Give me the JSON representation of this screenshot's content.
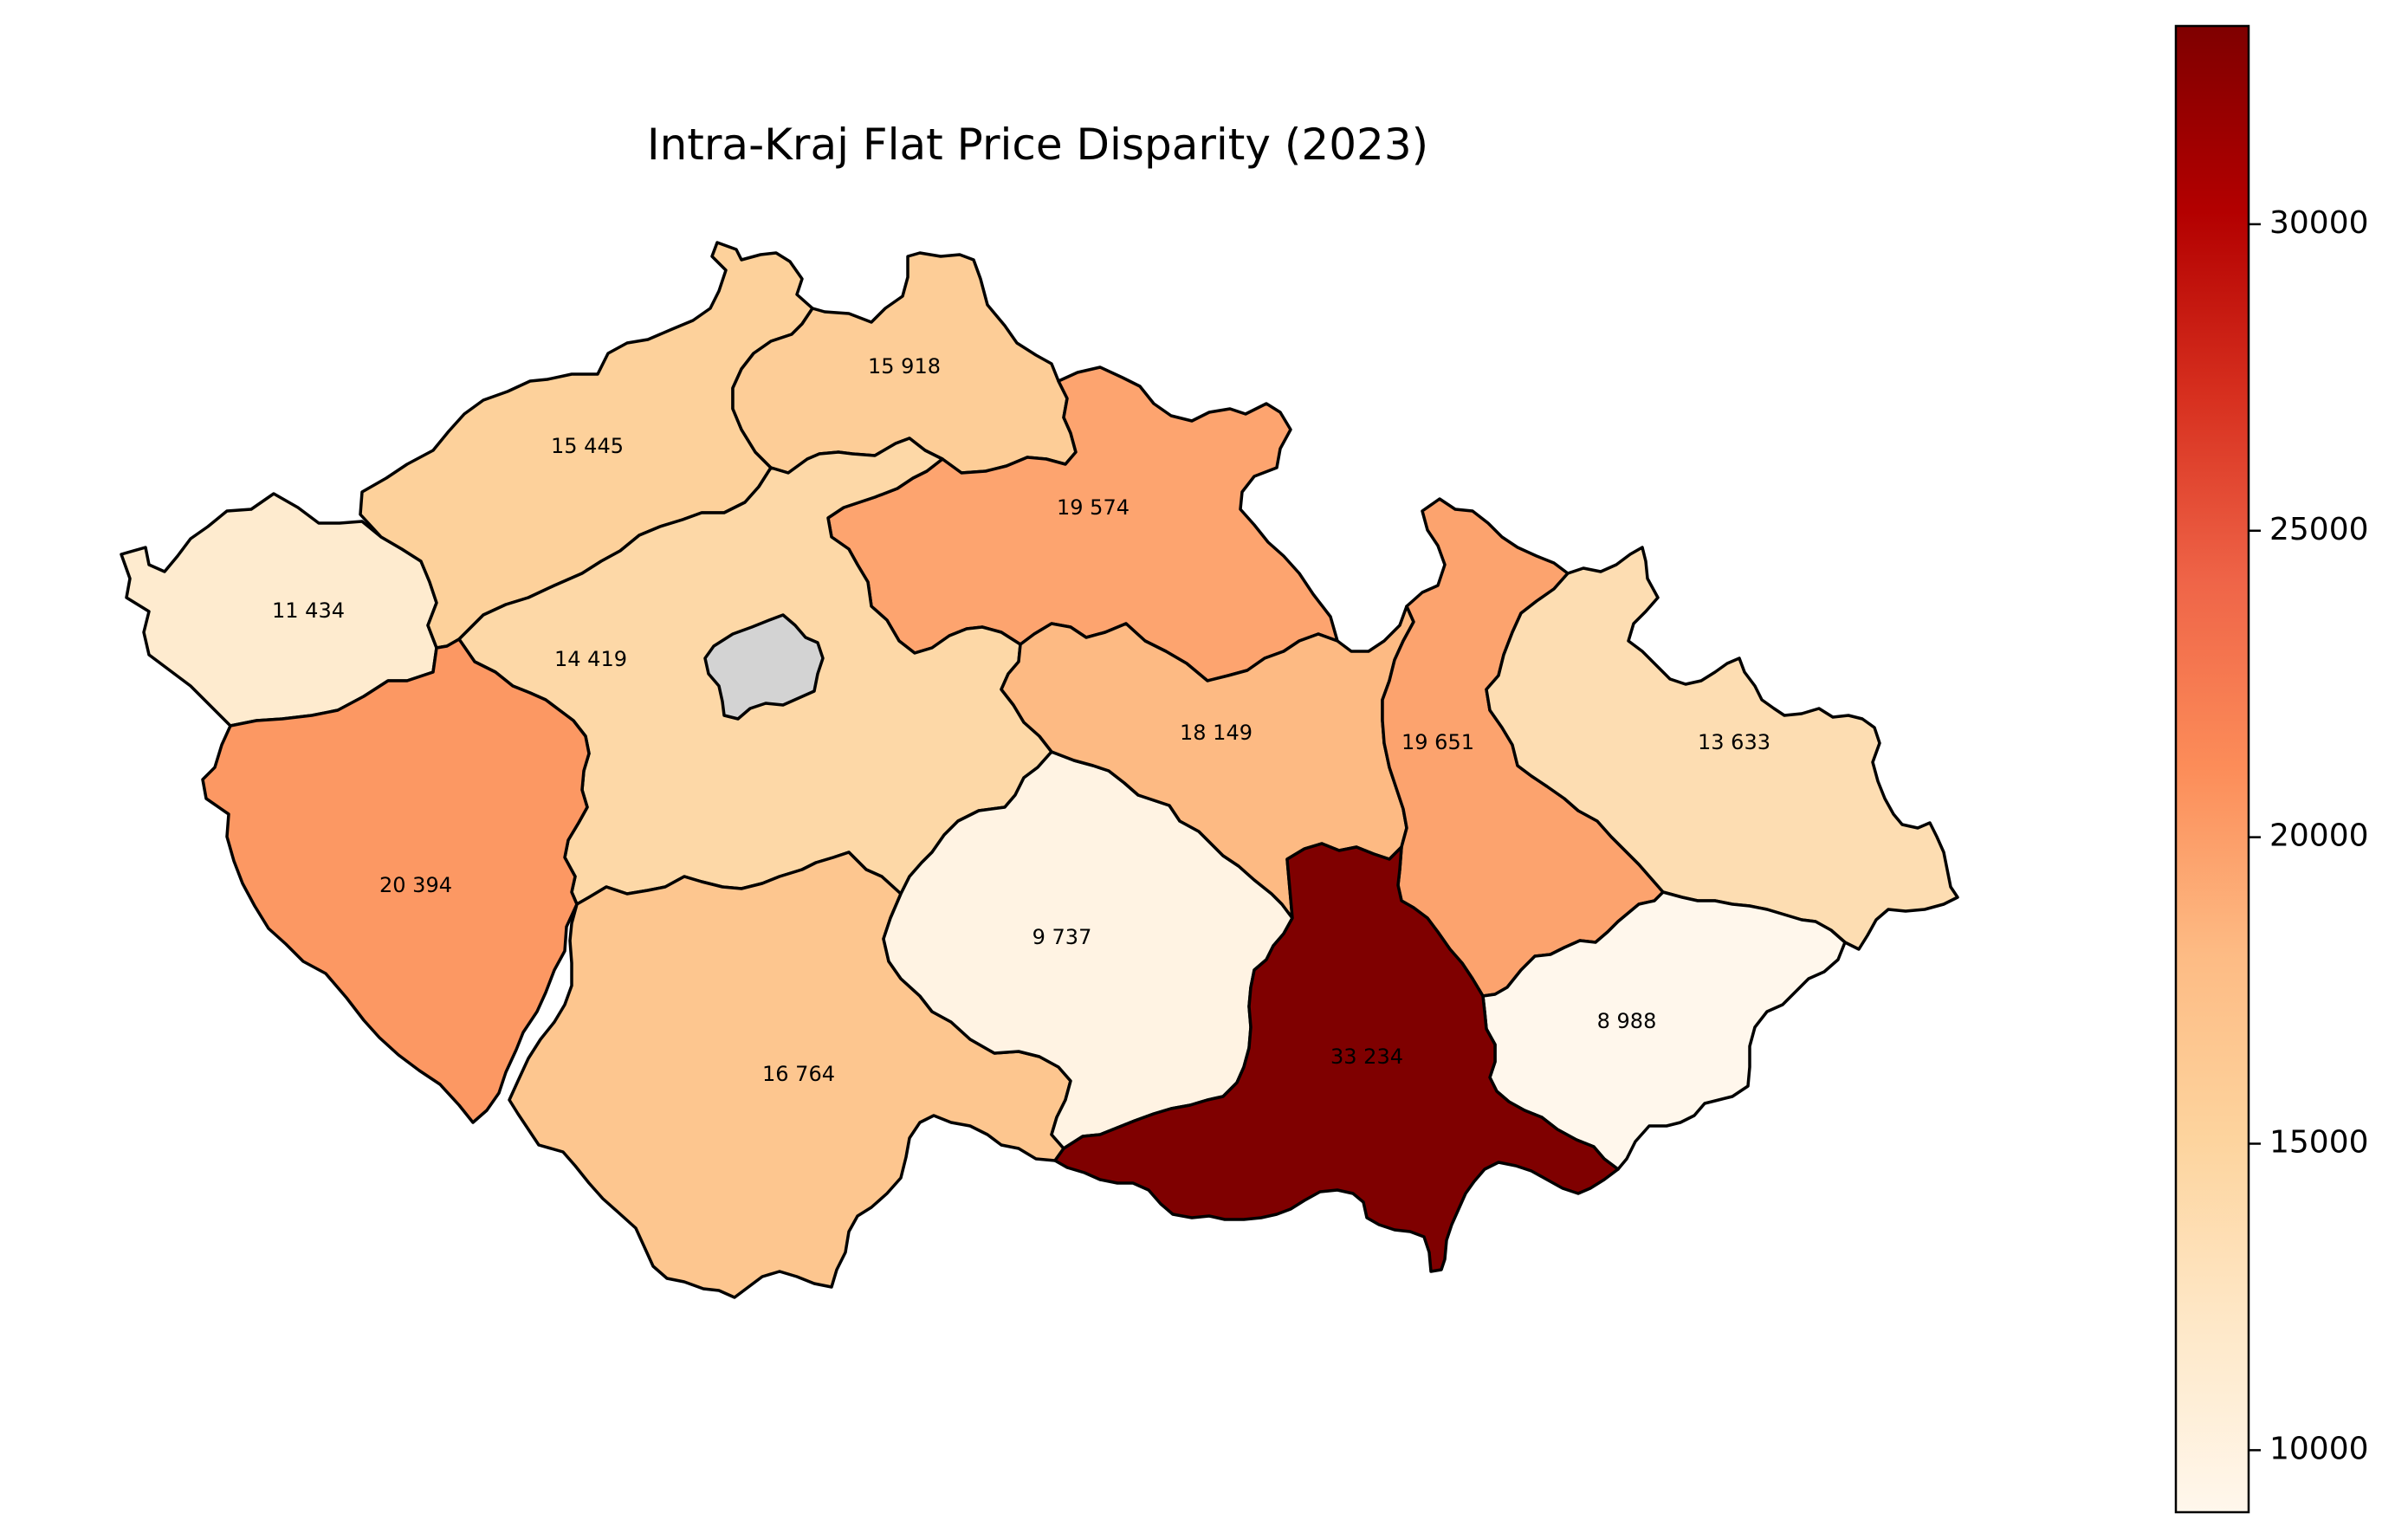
{
  "title": "Intra-Kraj Flat Price Disparity (2023)",
  "colormap": "OrRd",
  "colorbar": {
    "min": 8988,
    "max": 33234,
    "ticks": [
      {
        "value": 10000,
        "label": "10000"
      },
      {
        "value": 15000,
        "label": "15000"
      },
      {
        "value": 20000,
        "label": "20000"
      },
      {
        "value": 25000,
        "label": "25000"
      },
      {
        "value": 30000,
        "label": "30000"
      }
    ]
  },
  "no_data_color": "#d3d3d3",
  "regions": [
    {
      "id": "karlovarsky",
      "value": 11434,
      "label": "11 434"
    },
    {
      "id": "ustecky",
      "value": 15445,
      "label": "15 445"
    },
    {
      "id": "liberecky",
      "value": 15918,
      "label": "15 918"
    },
    {
      "id": "kralovehradecky",
      "value": 19574,
      "label": "19 574"
    },
    {
      "id": "stredocesky",
      "value": 14419,
      "label": "14 419"
    },
    {
      "id": "praha",
      "value": null,
      "label": ""
    },
    {
      "id": "plzensky",
      "value": 20394,
      "label": "20 394"
    },
    {
      "id": "jihocesky",
      "value": 16764,
      "label": "16 764"
    },
    {
      "id": "vysocina",
      "value": 9737,
      "label": "9 737"
    },
    {
      "id": "pardubicky",
      "value": 18149,
      "label": "18 149"
    },
    {
      "id": "jihomoravsky",
      "value": 33234,
      "label": "33 234"
    },
    {
      "id": "olomoucky",
      "value": 19651,
      "label": "19 651"
    },
    {
      "id": "moravskoslezsky",
      "value": 13633,
      "label": "13 633"
    },
    {
      "id": "zlinsky",
      "value": 8988,
      "label": "8 988"
    }
  ]
}
